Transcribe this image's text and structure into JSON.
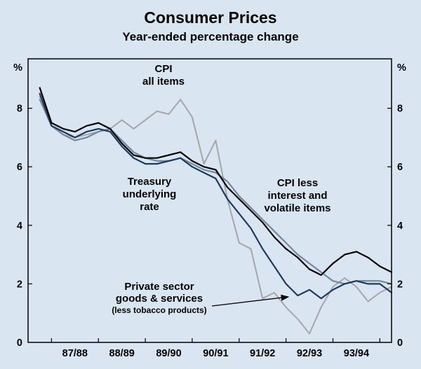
{
  "title": "Consumer Prices",
  "subtitle": "Year-ended percentage change",
  "axis": {
    "unit_left": "%",
    "unit_right": "%",
    "y_tick_labels": [
      "0",
      "2",
      "4",
      "6",
      "8"
    ],
    "x_labels": [
      "87/88",
      "88/89",
      "89/90",
      "90/91",
      "91/92",
      "92/93",
      "93/94"
    ]
  },
  "annotations": {
    "cpi_all_items": {
      "lines": [
        "CPI",
        "all items"
      ]
    },
    "treasury": {
      "lines": [
        "Treasury",
        "underlying",
        "rate"
      ]
    },
    "cpi_less": {
      "lines": [
        "CPI less",
        "interest and",
        "volatile items"
      ]
    },
    "private_sector": {
      "lines": [
        "Private sector",
        "goods & services",
        "(less tobacco products)"
      ]
    }
  },
  "colors": {
    "background": "#d9e6f1",
    "frame": "#000000",
    "cpi_all_items": "#a6a6a6",
    "cpi_less": "#000000",
    "treasury": "#74879e",
    "private_sector": "#1c3a5e"
  },
  "chart_data": {
    "type": "line",
    "title": "Consumer Prices",
    "subtitle": "Year-ended percentage change",
    "ylabel": "%",
    "ylim": [
      0,
      9.69
    ],
    "y_ticks": [
      0,
      2,
      4,
      6,
      8
    ],
    "x_start": 1987.25,
    "x_step": 0.25,
    "x_range": [
      1987.0,
      1994.75
    ],
    "x_tick_positions": [
      1987.5,
      1988.5,
      1989.5,
      1990.5,
      1991.5,
      1992.5,
      1993.5,
      1994.5
    ],
    "x_label_positions": [
      1988,
      1989,
      1990,
      1991,
      1992,
      1993,
      1994
    ],
    "x_label_texts": [
      "87/88",
      "88/89",
      "89/90",
      "90/91",
      "91/92",
      "92/93",
      "93/94"
    ],
    "grid": false,
    "legend": "annotated labels on plot",
    "series": [
      {
        "name": "CPI all items",
        "color_key": "cpi_all_items",
        "width": 2,
        "values": [
          8.4,
          7.4,
          7.1,
          7.0,
          7.1,
          7.2,
          7.3,
          7.6,
          7.3,
          7.6,
          7.9,
          7.8,
          8.3,
          7.7,
          6.1,
          6.9,
          4.9,
          3.4,
          3.2,
          1.5,
          1.7,
          1.2,
          0.8,
          0.3,
          1.2,
          1.9,
          2.2,
          1.9,
          1.4,
          1.7,
          1.9
        ]
      },
      {
        "name": "Treasury underlying rate",
        "color_key": "treasury",
        "width": 2.2,
        "values": [
          8.3,
          7.4,
          7.1,
          6.9,
          7.0,
          7.2,
          7.3,
          6.9,
          6.5,
          6.3,
          6.2,
          6.2,
          6.3,
          6.1,
          5.9,
          5.8,
          5.5,
          5.0,
          4.6,
          4.2,
          3.8,
          3.4,
          3.0,
          2.7,
          2.4,
          2.1,
          2.0,
          2.1,
          2.1,
          2.1,
          2.0
        ]
      },
      {
        "name": "Private sector goods & services (less tobacco products)",
        "color_key": "private_sector",
        "width": 2.2,
        "values": [
          8.5,
          7.4,
          7.2,
          7.0,
          7.2,
          7.3,
          7.2,
          6.7,
          6.3,
          6.1,
          6.1,
          6.2,
          6.3,
          6.0,
          5.8,
          5.6,
          4.9,
          4.4,
          3.9,
          3.2,
          2.6,
          2.0,
          1.6,
          1.8,
          1.5,
          1.8,
          2.0,
          2.1,
          2.0,
          2.0,
          1.7
        ]
      },
      {
        "name": "CPI less interest and volatile items",
        "color_key": "cpi_less",
        "width": 2.2,
        "values": [
          8.7,
          7.5,
          7.3,
          7.2,
          7.4,
          7.5,
          7.3,
          6.8,
          6.4,
          6.3,
          6.3,
          6.4,
          6.5,
          6.2,
          6.0,
          5.9,
          5.3,
          4.9,
          4.5,
          4.1,
          3.6,
          3.2,
          2.9,
          2.5,
          2.3,
          2.7,
          3.0,
          3.1,
          2.9,
          2.6,
          2.4
        ]
      }
    ]
  }
}
